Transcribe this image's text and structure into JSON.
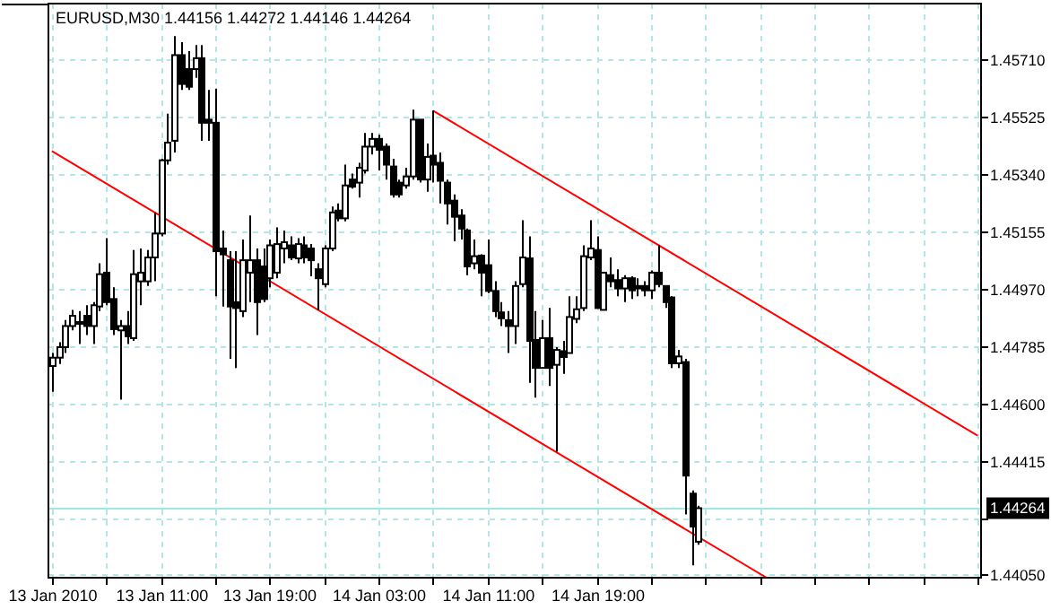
{
  "chart_data": {
    "type": "candlestick",
    "title": "EURUSD,M30  1.44156 1.44272 1.44146 1.44264",
    "categories": [
      "13 Jan 2010",
      null,
      null,
      null,
      null,
      null,
      null,
      null,
      null,
      null,
      null,
      null,
      null,
      null,
      null,
      null,
      "13 Jan 11:00",
      null,
      null,
      null,
      null,
      null,
      null,
      null,
      null,
      null,
      null,
      null,
      null,
      null,
      null,
      null,
      "13 Jan 19:00",
      null,
      null,
      null,
      null,
      null,
      null,
      null,
      null,
      null,
      null,
      null,
      null,
      null,
      null,
      null,
      "14 Jan 03:00",
      null,
      null,
      null,
      null,
      null,
      null,
      null,
      null,
      null,
      null,
      null,
      null,
      null,
      null,
      null,
      "14 Jan 11:00",
      null,
      null,
      null,
      null,
      null,
      null,
      null,
      null,
      null,
      null,
      null,
      null,
      null,
      null,
      null,
      "14 Jan 19:00",
      null,
      null,
      null,
      null,
      null,
      null,
      null,
      null,
      null,
      null,
      null,
      null,
      null,
      null,
      null,
      null,
      null,
      null,
      null,
      null,
      null,
      null,
      null,
      null,
      null,
      null,
      null,
      null,
      null,
      null,
      null,
      null,
      null,
      null,
      null,
      null,
      null,
      null,
      null,
      null,
      null,
      null,
      null,
      null,
      null,
      null,
      null,
      null,
      null,
      null,
      null,
      null,
      null,
      null,
      null,
      null
    ],
    "ohlc": [
      [
        1.44722,
        1.44764,
        1.44639,
        1.44749
      ],
      [
        1.44749,
        1.44799,
        1.44729,
        1.44783
      ],
      [
        1.44783,
        1.4487,
        1.44764,
        1.44851
      ],
      [
        1.44851,
        1.44903,
        1.44837,
        1.44884
      ],
      [
        1.44864,
        1.44899,
        1.44793,
        1.44864
      ],
      [
        1.44884,
        1.44918,
        1.44822,
        1.44851
      ],
      [
        1.44851,
        1.44928,
        1.44793,
        1.44918
      ],
      [
        1.44914,
        1.45053,
        1.44899,
        1.45018
      ],
      [
        1.45023,
        1.45134,
        1.44918,
        1.44928
      ],
      [
        1.44938,
        1.44976,
        1.44822,
        1.44841
      ],
      [
        1.44837,
        1.4487,
        1.44614,
        1.44851
      ],
      [
        1.44851,
        1.44899,
        1.44793,
        1.44818
      ],
      [
        1.44812,
        1.45096,
        1.44803,
        1.45018
      ],
      [
        1.44995,
        1.45101,
        1.44918,
        1.45023
      ],
      [
        1.44995,
        1.45096,
        1.4498,
        1.45072
      ],
      [
        1.45072,
        1.45217,
        1.44995,
        1.45149
      ],
      [
        1.45149,
        1.4539,
        1.4514,
        1.45385
      ],
      [
        1.45385,
        1.45535,
        1.45371,
        1.45442
      ],
      [
        1.45448,
        1.45785,
        1.4541,
        1.45724
      ],
      [
        1.45724,
        1.45766,
        1.45612,
        1.45631
      ],
      [
        1.45679,
        1.45737,
        1.45612,
        1.45622
      ],
      [
        1.45679,
        1.45756,
        1.45651,
        1.45714
      ],
      [
        1.45714,
        1.45756,
        1.45448,
        1.45506
      ],
      [
        1.45516,
        1.45612,
        1.45448,
        1.45506
      ],
      [
        1.45506,
        1.45616,
        1.44947,
        1.45092
      ],
      [
        1.45101,
        1.45159,
        1.44914,
        1.45082
      ],
      [
        1.45063,
        1.45092,
        1.44745,
        1.44914
      ],
      [
        1.44928,
        1.45092,
        1.44716,
        1.44909
      ],
      [
        1.44899,
        1.4513,
        1.4488,
        1.45063
      ],
      [
        1.45023,
        1.45207,
        1.44928,
        1.45063
      ],
      [
        1.45063,
        1.45101,
        1.44822,
        1.44928
      ],
      [
        1.45043,
        1.45101,
        1.44928,
        1.44938
      ],
      [
        1.45005,
        1.4513,
        1.44976,
        1.45111
      ],
      [
        1.45023,
        1.45169,
        1.45005,
        1.45115
      ],
      [
        1.45101,
        1.45159,
        1.45053,
        1.45121
      ],
      [
        1.45111,
        1.4514,
        1.45063,
        1.45072
      ],
      [
        1.45069,
        1.45134,
        1.45053,
        1.45115
      ],
      [
        1.45111,
        1.4514,
        1.45053,
        1.45072
      ],
      [
        1.45101,
        1.45115,
        1.45011,
        1.45063
      ],
      [
        1.45034,
        1.45053,
        1.44903,
        1.45005
      ],
      [
        1.44986,
        1.45111,
        1.44976,
        1.45101
      ],
      [
        1.45101,
        1.45236,
        1.45092,
        1.45217
      ],
      [
        1.45223,
        1.45246,
        1.45188,
        1.45198
      ],
      [
        1.45198,
        1.45371,
        1.45188,
        1.45304
      ],
      [
        1.45323,
        1.45342,
        1.45294,
        1.453
      ],
      [
        1.45313,
        1.45377,
        1.45265,
        1.45361
      ],
      [
        1.45352,
        1.45473,
        1.45342,
        1.45429
      ],
      [
        1.45429,
        1.45473,
        1.45404,
        1.45454
      ],
      [
        1.45454,
        1.45467,
        1.45352,
        1.45419
      ],
      [
        1.45429,
        1.45439,
        1.45323,
        1.45371
      ],
      [
        1.45365,
        1.4539,
        1.45265,
        1.45275
      ],
      [
        1.45313,
        1.45323,
        1.45265,
        1.45275
      ],
      [
        1.45304,
        1.45361,
        1.45294,
        1.45333
      ],
      [
        1.45333,
        1.45548,
        1.45323,
        1.45516
      ],
      [
        1.45516,
        1.45516,
        1.45313,
        1.45323
      ],
      [
        1.45323,
        1.45439,
        1.45284,
        1.45396
      ],
      [
        1.454,
        1.45545,
        1.45313,
        1.45371
      ],
      [
        1.45377,
        1.4541,
        1.45246,
        1.45319
      ],
      [
        1.45313,
        1.45323,
        1.45178,
        1.45246
      ],
      [
        1.45255,
        1.45275,
        1.45124,
        1.45203
      ],
      [
        1.45207,
        1.45227,
        1.4513,
        1.45165
      ],
      [
        1.45159,
        1.45165,
        1.45015,
        1.45043
      ],
      [
        1.45053,
        1.4513,
        1.45034,
        1.45076
      ],
      [
        1.45078,
        1.45082,
        1.44947,
        1.45023
      ],
      [
        1.45047,
        1.4513,
        1.44957,
        1.44964
      ],
      [
        1.44964,
        1.44995,
        1.4488,
        1.44899
      ],
      [
        1.44895,
        1.44928,
        1.44851,
        1.44876
      ],
      [
        1.4487,
        1.44899,
        1.44764,
        1.44851
      ],
      [
        1.44851,
        1.44995,
        1.44793,
        1.4498
      ],
      [
        1.44986,
        1.45192,
        1.44976,
        1.45072
      ],
      [
        1.45069,
        1.4514,
        1.44668,
        1.44803
      ],
      [
        1.44806,
        1.44899,
        1.4462,
        1.44716
      ],
      [
        1.44716,
        1.4487,
        1.44716,
        1.44812
      ],
      [
        1.44812,
        1.44909,
        1.44658,
        1.44716
      ],
      [
        1.44726,
        1.44783,
        1.44446,
        1.44774
      ],
      [
        1.4477,
        1.44803,
        1.44697,
        1.44751
      ],
      [
        1.44764,
        1.44947,
        1.44764,
        1.4488
      ],
      [
        1.44874,
        1.44947,
        1.4486,
        1.44905
      ],
      [
        1.44909,
        1.45111,
        1.44899,
        1.45076
      ],
      [
        1.45072,
        1.45192,
        1.45063,
        1.45101
      ],
      [
        1.45096,
        1.4514,
        1.44909,
        1.44909
      ],
      [
        1.44903,
        1.45023,
        1.44903,
        1.45023
      ],
      [
        1.45015,
        1.45072,
        1.44976,
        1.44995
      ],
      [
        1.44999,
        1.45034,
        1.44947,
        1.44972
      ],
      [
        1.44972,
        1.45015,
        1.44928,
        1.45005
      ],
      [
        1.45005,
        1.45011,
        1.44938,
        1.44966
      ],
      [
        1.4498,
        1.45005,
        1.44947,
        1.44972
      ],
      [
        1.4498,
        1.44995,
        1.44947,
        1.44966
      ],
      [
        1.44966,
        1.4503,
        1.44938,
        1.45023
      ],
      [
        1.45023,
        1.45111,
        1.44976,
        1.44986
      ],
      [
        1.4498,
        1.4498,
        1.44909,
        1.44928
      ],
      [
        1.44943,
        1.44947,
        1.44716,
        1.44731
      ],
      [
        1.44731,
        1.44774,
        1.44716,
        1.44753
      ],
      [
        1.44735,
        1.44745,
        1.44244,
        1.44369
      ],
      [
        1.44311,
        1.44321,
        1.4408,
        1.44205
      ],
      [
        1.44156,
        1.44272,
        1.44146,
        1.44264
      ],
      null,
      null,
      null,
      null,
      null,
      null,
      null,
      null,
      null,
      null,
      null,
      null,
      null,
      null,
      null,
      null,
      null,
      null,
      null,
      null,
      null,
      null,
      null,
      null,
      null,
      null,
      null,
      null,
      null,
      null,
      null,
      null,
      null,
      null,
      null,
      null,
      null,
      null,
      null,
      null,
      null
    ],
    "series": [
      {
        "type": "line",
        "color": "#ff0000",
        "values": [
          null,
          null,
          null,
          null,
          null,
          null,
          null,
          null,
          null,
          null,
          null,
          null,
          null,
          null,
          null,
          null,
          null,
          null,
          null,
          null,
          null,
          null,
          null,
          null,
          null,
          null,
          null,
          null,
          null,
          null,
          null,
          null,
          null,
          null,
          null,
          null,
          null,
          null,
          null,
          null,
          null,
          null,
          null,
          null,
          null,
          null,
          null,
          null,
          null,
          null,
          null,
          null,
          null,
          null,
          null,
          null,
          1.45545,
          null,
          null,
          null,
          null,
          null,
          null,
          null,
          null,
          null,
          null,
          null,
          null,
          null,
          null,
          null,
          null,
          null,
          null,
          null,
          null,
          null,
          null,
          null,
          null,
          null,
          null,
          null,
          null,
          null,
          null,
          null,
          null,
          null,
          null,
          null,
          null,
          null,
          null,
          null,
          null,
          null,
          null,
          null,
          null,
          null,
          null,
          null,
          null,
          null,
          null,
          null,
          null,
          null,
          null,
          null,
          null,
          null,
          null,
          null,
          null,
          null,
          null,
          null,
          null,
          null,
          null,
          null,
          null,
          null,
          null,
          null,
          null,
          null,
          null,
          null,
          null,
          null,
          null,
          null,
          1.44498
        ]
      },
      {
        "type": "line",
        "color": "#ff0000",
        "values": [
          1.45415,
          null,
          null,
          null,
          null,
          null,
          null,
          null,
          null,
          null,
          null,
          null,
          null,
          null,
          null,
          null,
          null,
          null,
          null,
          null,
          null,
          null,
          null,
          null,
          null,
          null,
          null,
          null,
          null,
          null,
          null,
          null,
          null,
          null,
          null,
          null,
          null,
          null,
          null,
          null,
          null,
          null,
          null,
          null,
          null,
          null,
          null,
          null,
          null,
          null,
          null,
          null,
          null,
          null,
          null,
          null,
          null,
          null,
          null,
          null,
          null,
          null,
          null,
          null,
          null,
          null,
          null,
          null,
          null,
          null,
          null,
          null,
          null,
          null,
          null,
          null,
          null,
          null,
          null,
          null,
          null,
          null,
          null,
          null,
          null,
          null,
          null,
          null,
          null,
          null,
          null,
          null,
          null,
          null,
          null,
          null,
          null,
          null,
          null,
          null,
          null,
          null,
          null,
          null,
          null,
          1.4404,
          null,
          null,
          null,
          null,
          null,
          null,
          null,
          null,
          null,
          null,
          null,
          null,
          null,
          null,
          null,
          null,
          null,
          null,
          null,
          null,
          null,
          null,
          null,
          null,
          null,
          null,
          null,
          null,
          null,
          null,
          null
        ]
      }
    ],
    "ylim": [
      1.4404,
      1.4589
    ],
    "yticks": [
      {
        "value": 1.4405,
        "label": "1.44050"
      },
      {
        "value": 1.4423,
        "label": null
      },
      {
        "value": 1.44415,
        "label": "1.44415"
      },
      {
        "value": 1.446,
        "label": "1.44600"
      },
      {
        "value": 1.44785,
        "label": "1.44785"
      },
      {
        "value": 1.4497,
        "label": "1.44970"
      },
      {
        "value": 1.45155,
        "label": "1.45155"
      },
      {
        "value": 1.4534,
        "label": "1.45340"
      },
      {
        "value": 1.45525,
        "label": "1.45525"
      },
      {
        "value": 1.4571,
        "label": "1.45710"
      }
    ],
    "ref_lines": [
      {
        "axis": "y",
        "value": 1.44264,
        "label": "1.44264",
        "color": "#a0e8e8"
      }
    ],
    "grid": true,
    "color": "#000000"
  }
}
